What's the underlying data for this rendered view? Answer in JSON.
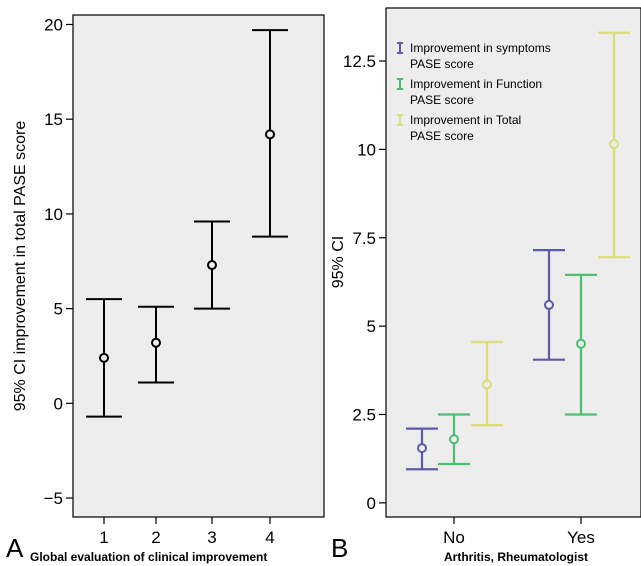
{
  "chart_data": [
    {
      "type": "errorbar",
      "panel_label": "A",
      "xlabel": "Global evaluation of clinical improvement",
      "ylabel": "95% CI improvement in total PASE score",
      "ylim": [
        -6,
        20.5
      ],
      "yticks": [
        -5,
        0,
        5,
        10,
        15,
        20
      ],
      "ytick_labels": [
        "−5",
        "0",
        "5",
        "10",
        "15",
        "20"
      ],
      "categories": [
        "1",
        "2",
        "3",
        "4"
      ],
      "background": "#ededed",
      "series": [
        {
          "color": "#000000",
          "points": [
            {
              "x": "1",
              "mean": 2.4,
              "lower": -0.7,
              "upper": 5.5
            },
            {
              "x": "2",
              "mean": 3.2,
              "lower": 1.1,
              "upper": 5.1
            },
            {
              "x": "3",
              "mean": 7.3,
              "lower": 5.0,
              "upper": 9.6
            },
            {
              "x": "4",
              "mean": 14.2,
              "lower": 8.8,
              "upper": 19.7
            }
          ]
        }
      ]
    },
    {
      "type": "errorbar",
      "panel_label": "B",
      "xlabel": "Arthritis, Rheumatologist",
      "ylabel": "95% CI",
      "ylim": [
        -0.4,
        14
      ],
      "yticks": [
        0,
        2.5,
        5,
        7.5,
        10,
        12.5
      ],
      "ytick_labels": [
        "0",
        "2.5",
        "5",
        "7.5",
        "10",
        "12.5"
      ],
      "categories": [
        "No",
        "Yes"
      ],
      "background": "#ededed",
      "legend_position": "top-left",
      "series": [
        {
          "name": "Improvement in symptoms PASE score",
          "legend_lines": [
            "Improvement in symptoms",
            "PASE score"
          ],
          "color": "#5b5ba8",
          "points": [
            {
              "x": "No",
              "mean": 1.55,
              "lower": 0.95,
              "upper": 2.1
            },
            {
              "x": "Yes",
              "mean": 5.6,
              "lower": 4.05,
              "upper": 7.15
            }
          ]
        },
        {
          "name": "Improvement in Function PASE score",
          "legend_lines": [
            "Improvement in Function",
            "PASE score"
          ],
          "color": "#4cbf6f",
          "points": [
            {
              "x": "No",
              "mean": 1.8,
              "lower": 1.1,
              "upper": 2.5
            },
            {
              "x": "Yes",
              "mean": 4.5,
              "lower": 2.5,
              "upper": 6.45
            }
          ]
        },
        {
          "name": "Improvement in Total PASE score",
          "legend_lines": [
            "Improvement in Total",
            "PASE score"
          ],
          "color": "#dcdc7a",
          "points": [
            {
              "x": "No",
              "mean": 3.35,
              "lower": 2.2,
              "upper": 4.55
            },
            {
              "x": "Yes",
              "mean": 10.15,
              "lower": 6.95,
              "upper": 13.3
            }
          ]
        }
      ]
    }
  ]
}
